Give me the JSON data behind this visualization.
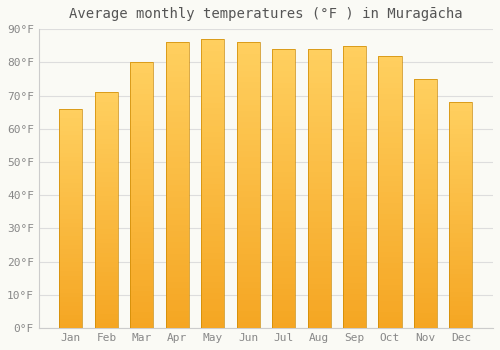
{
  "title": "Average monthly temperatures (°F ) in Muragācha",
  "months": [
    "Jan",
    "Feb",
    "Mar",
    "Apr",
    "May",
    "Jun",
    "Jul",
    "Aug",
    "Sep",
    "Oct",
    "Nov",
    "Dec"
  ],
  "values": [
    66,
    71,
    80,
    86,
    87,
    86,
    84,
    84,
    85,
    82,
    75,
    68
  ],
  "bar_color_bottom": "#F5A623",
  "bar_color_top": "#FFD060",
  "bar_edge_color": "#CC8800",
  "background_color": "#FAFAF5",
  "grid_color": "#DDDDDD",
  "ylim": [
    0,
    90
  ],
  "yticks": [
    0,
    10,
    20,
    30,
    40,
    50,
    60,
    70,
    80,
    90
  ],
  "ytick_labels": [
    "0°F",
    "10°F",
    "20°F",
    "30°F",
    "40°F",
    "50°F",
    "60°F",
    "70°F",
    "80°F",
    "90°F"
  ],
  "title_fontsize": 10,
  "tick_fontsize": 8,
  "bar_width": 0.65,
  "tick_color": "#888888",
  "title_color": "#555555"
}
